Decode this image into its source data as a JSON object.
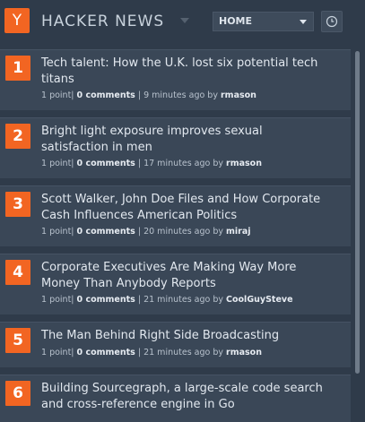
{
  "header": {
    "logo_letter": "Y",
    "title": "HACKER NEWS",
    "select_value": "HOME"
  },
  "items": [
    {
      "rank": "1",
      "title": "Tech talent: How the U.K. lost six potential tech titans",
      "points": "1 point|",
      "comments": "0 comments",
      "sep": "|",
      "time": "9 minutes ago by",
      "user": "rmason"
    },
    {
      "rank": "2",
      "title": "Bright light exposure improves sexual satisfaction in men",
      "points": "1 point|",
      "comments": "0 comments",
      "sep": "|",
      "time": "17 minutes ago by",
      "user": "rmason"
    },
    {
      "rank": "3",
      "title": "Scott Walker, John Doe Files and How Corporate Cash Influences American Politics",
      "points": "1 point|",
      "comments": "0 comments",
      "sep": "|",
      "time": "20 minutes ago by",
      "user": "miraj"
    },
    {
      "rank": "4",
      "title": "Corporate Executives Are Making Way More Money Than Anybody Reports",
      "points": "1 point|",
      "comments": "0 comments",
      "sep": "|",
      "time": "21 minutes ago by",
      "user": "CoolGuySteve"
    },
    {
      "rank": "5",
      "title": "The Man Behind Right Side Broadcasting",
      "points": "1 point|",
      "comments": "0 comments",
      "sep": "|",
      "time": "21 minutes ago by",
      "user": "rmason"
    },
    {
      "rank": "6",
      "title": "Building Sourcegraph, a large-scale code search and cross-reference engine in Go",
      "points": "",
      "comments": "",
      "sep": "",
      "time": "",
      "user": ""
    }
  ],
  "colors": {
    "accent": "#f26522",
    "background": "#2f3b4a",
    "card": "#3a4757"
  },
  "icons": {
    "clock": "clock-icon",
    "dropdown": "chevron-down-icon"
  }
}
